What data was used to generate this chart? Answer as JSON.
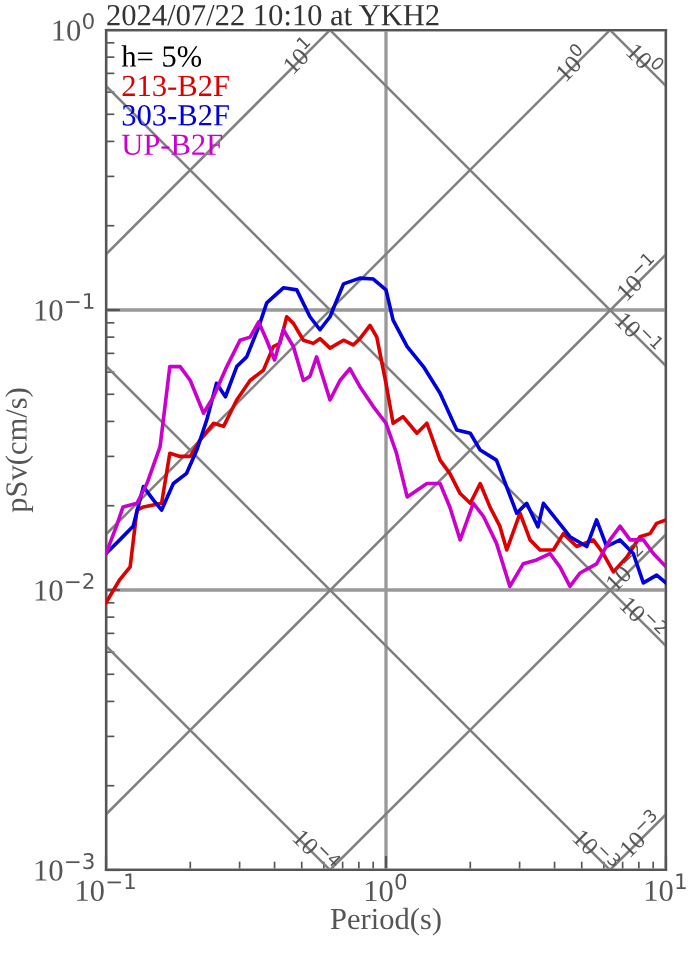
{
  "chart_data": {
    "type": "line",
    "title": "2024/07/22 10:10 at YKH2",
    "xlabel": "Period(s)",
    "ylabel": "pSv(cm/s)",
    "legend_title": "h= 5%",
    "log": "xy",
    "xlim": [
      0.1,
      10
    ],
    "ylim": [
      0.001,
      1
    ],
    "xticks": [
      {
        "value": 0.1,
        "label": "10$^{−1}$"
      },
      {
        "value": 1,
        "label": "10$^{0}$"
      },
      {
        "value": 10,
        "label": "10$^{1}$"
      }
    ],
    "yticks": [
      {
        "value": 0.001,
        "label": "10$^{−3}$"
      },
      {
        "value": 0.01,
        "label": "10$^{−2}$"
      },
      {
        "value": 0.1,
        "label": "10$^{−1}$"
      },
      {
        "value": 1,
        "label": "10$^{0}$"
      }
    ],
    "grid": true,
    "legend": "top left",
    "marker": "none",
    "line_style": "solid",
    "series": [
      {
        "color": "#808080",
        "x": [
          0.1,
          0.631
        ],
        "values": [
          0.158,
          1.0
        ]
      },
      {
        "color": "#808080",
        "x": [
          0.1,
          6.31
        ],
        "values": [
          0.0158,
          1.0
        ]
      },
      {
        "color": "#808080",
        "x": [
          0.1,
          10
        ],
        "values": [
          0.00158,
          0.158
        ]
      },
      {
        "color": "#808080",
        "x": [
          0.631,
          10
        ],
        "values": [
          0.001,
          0.0158
        ]
      },
      {
        "color": "#808080",
        "x": [
          6.31,
          10
        ],
        "values": [
          0.001,
          0.00158
        ]
      },
      {
        "color": "#808080",
        "x": [
          6.31,
          10
        ],
        "values": [
          1.0,
          0.631
        ]
      },
      {
        "color": "#808080",
        "x": [
          0.631,
          10
        ],
        "values": [
          1.0,
          0.0631
        ]
      },
      {
        "color": "#808080",
        "x": [
          0.1,
          10
        ],
        "values": [
          0.631,
          0.00631
        ]
      },
      {
        "color": "#808080",
        "x": [
          0.1,
          6.31
        ],
        "values": [
          0.0631,
          0.001
        ]
      },
      {
        "color": "#808080",
        "x": [
          0.1,
          0.631
        ],
        "values": [
          0.00631,
          0.001
        ]
      },
      {
        "name": "213-B2F",
        "color": "#dd0000",
        "x": [
          0.1,
          0.112,
          0.122,
          0.129,
          0.136,
          0.158,
          0.169,
          0.184,
          0.2,
          0.217,
          0.242,
          0.263,
          0.293,
          0.327,
          0.365,
          0.396,
          0.418,
          0.442,
          0.467,
          0.507,
          0.55,
          0.581,
          0.631,
          0.705,
          0.764,
          0.807,
          0.877,
          0.927,
          1.0,
          1.06,
          1.15,
          1.29,
          1.4,
          1.56,
          1.69,
          1.84,
          2.0,
          2.17,
          2.35,
          2.55,
          2.7,
          3.01,
          3.27,
          3.55,
          3.96,
          4.3,
          4.8,
          5.5,
          5.97,
          6.49,
          7.24,
          8.07,
          8.77,
          9.26,
          10
        ],
        "values": [
          0.009,
          0.0109,
          0.0121,
          0.0193,
          0.0198,
          0.0204,
          0.0308,
          0.03,
          0.03,
          0.0344,
          0.0394,
          0.0384,
          0.0477,
          0.056,
          0.061,
          0.074,
          0.076,
          0.0946,
          0.0896,
          0.078,
          0.076,
          0.079,
          0.0731,
          0.078,
          0.075,
          0.079,
          0.0881,
          0.08,
          0.0547,
          0.0394,
          0.0416,
          0.0363,
          0.0394,
          0.0291,
          0.0261,
          0.0221,
          0.0204,
          0.024,
          0.0198,
          0.0169,
          0.0139,
          0.0188,
          0.0151,
          0.0139,
          0.0139,
          0.0159,
          0.0143,
          0.0151,
          0.0135,
          0.0116,
          0.0131,
          0.0155,
          0.0159,
          0.0173,
          0.0178
        ]
      },
      {
        "name": "303-B2F",
        "color": "#0000dd",
        "x": [
          0.1,
          0.112,
          0.125,
          0.136,
          0.148,
          0.158,
          0.174,
          0.194,
          0.211,
          0.229,
          0.248,
          0.267,
          0.293,
          0.318,
          0.351,
          0.375,
          0.43,
          0.48,
          0.535,
          0.581,
          0.631,
          0.705,
          0.807,
          0.901,
          1.0,
          1.06,
          1.19,
          1.36,
          1.56,
          1.79,
          2.0,
          2.17,
          2.48,
          2.93,
          3.18,
          3.49,
          3.65,
          4.07,
          4.54,
          5.21,
          5.65,
          6.14,
          6.85,
          7.64,
          8.3,
          9.26,
          10
        ],
        "values": [
          0.0135,
          0.0151,
          0.0169,
          0.0234,
          0.0209,
          0.0193,
          0.024,
          0.0261,
          0.0316,
          0.0405,
          0.0547,
          0.049,
          0.0628,
          0.068,
          0.087,
          0.106,
          0.12,
          0.118,
          0.0946,
          0.085,
          0.0946,
          0.124,
          0.13,
          0.129,
          0.118,
          0.092,
          0.074,
          0.0628,
          0.0504,
          0.0373,
          0.0363,
          0.0316,
          0.0291,
          0.0188,
          0.0204,
          0.0168,
          0.0204,
          0.0178,
          0.0155,
          0.0143,
          0.0178,
          0.0143,
          0.0151,
          0.0135,
          0.0106,
          0.0113,
          0.0106
        ]
      },
      {
        "name": "UP-B2F",
        "color": "#cc00cc",
        "x": [
          0.1,
          0.109,
          0.115,
          0.129,
          0.14,
          0.156,
          0.169,
          0.184,
          0.2,
          0.223,
          0.242,
          0.27,
          0.301,
          0.327,
          0.351,
          0.375,
          0.4,
          0.43,
          0.467,
          0.507,
          0.535,
          0.565,
          0.631,
          0.685,
          0.743,
          0.807,
          0.901,
          1.0,
          1.09,
          1.19,
          1.4,
          1.56,
          1.69,
          1.84,
          2.05,
          2.23,
          2.48,
          2.77,
          3.09,
          3.45,
          3.85,
          4.18,
          4.54,
          4.93,
          5.65,
          6.31,
          6.85,
          7.44,
          8.3,
          9.01,
          10
        ],
        "values": [
          0.0135,
          0.0169,
          0.0198,
          0.0204,
          0.024,
          0.0325,
          0.0628,
          0.0628,
          0.056,
          0.0428,
          0.049,
          0.0628,
          0.078,
          0.08,
          0.0906,
          0.078,
          0.0663,
          0.085,
          0.074,
          0.056,
          0.058,
          0.068,
          0.0477,
          0.056,
          0.0617,
          0.0532,
          0.0452,
          0.0394,
          0.0308,
          0.0215,
          0.024,
          0.024,
          0.0198,
          0.0151,
          0.0204,
          0.0183,
          0.0147,
          0.0103,
          0.0124,
          0.0128,
          0.0135,
          0.0121,
          0.0103,
          0.0115,
          0.0124,
          0.0151,
          0.0169,
          0.0151,
          0.0151,
          0.0135,
          0.0121
        ]
      }
    ],
    "annotations": [
      {
        "text": "10$^{1}$",
        "x": 0.5,
        "y": 0.792
      },
      {
        "text": "10$^{0}$",
        "x": 4.7,
        "y": 0.745
      },
      {
        "text": "10$^{0}$",
        "x": 8.2,
        "y": 0.769
      },
      {
        "text": "10$^{−1}$",
        "x": 8.1,
        "y": 0.128
      },
      {
        "text": "10$^{−1}$",
        "x": 7.8,
        "y": 0.0809
      },
      {
        "text": "10$^{−2}$",
        "x": 7.4,
        "y": 0.01173
      },
      {
        "text": "10$^{−2}$",
        "x": 8.1,
        "y": 0.0078
      },
      {
        "text": "10$^{−4}$",
        "x": 0.55,
        "y": 0.00115
      },
      {
        "text": "10$^{−3}$",
        "x": 5.5,
        "y": 0.00115
      },
      {
        "text": "10$^{−3}$",
        "x": 8.3,
        "y": 0.001316
      }
    ]
  }
}
